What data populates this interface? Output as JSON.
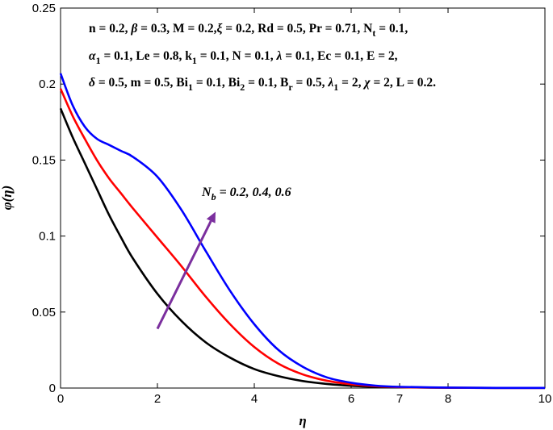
{
  "chart_data": {
    "type": "line",
    "xlabel": "η",
    "ylabel": "φ(η)",
    "xlim": [
      0,
      10
    ],
    "ylim": [
      0,
      0.25
    ],
    "xticks": [
      0,
      2,
      4,
      6,
      7,
      8,
      10
    ],
    "xtick_labels": [
      "0",
      "2",
      "4",
      "6",
      "7",
      "8",
      "10"
    ],
    "yticks": [
      0,
      0.05,
      0.1,
      0.15,
      0.2,
      0.25
    ],
    "ytick_labels": [
      "0",
      "0.05",
      "0.1",
      "0.15",
      "0.2",
      "0.25"
    ],
    "grid": false,
    "series": [
      {
        "color": "#000000",
        "x": [
          0,
          0.25,
          0.5,
          0.75,
          1,
          1.25,
          1.5,
          2,
          2.5,
          3,
          3.5,
          4,
          4.5,
          5,
          5.5,
          6,
          6.5,
          7,
          8,
          9,
          10
        ],
        "y": [
          0.184,
          0.165,
          0.148,
          0.131,
          0.114,
          0.099,
          0.085,
          0.062,
          0.044,
          0.03,
          0.02,
          0.0125,
          0.0078,
          0.0046,
          0.0027,
          0.0015,
          0.0008,
          0.0005,
          0.0002,
          0.0001,
          0.0001
        ]
      },
      {
        "color": "#ff0000",
        "x": [
          0,
          0.25,
          0.5,
          0.75,
          1,
          1.25,
          1.5,
          2,
          2.5,
          3,
          3.5,
          4,
          4.5,
          5,
          5.5,
          6,
          6.5,
          7,
          8,
          9,
          10
        ],
        "y": [
          0.197,
          0.179,
          0.164,
          0.15,
          0.138,
          0.128,
          0.118,
          0.099,
          0.08,
          0.06,
          0.042,
          0.027,
          0.016,
          0.009,
          0.0048,
          0.0025,
          0.0012,
          0.0006,
          0.0002,
          0.0001,
          0.0001
        ]
      },
      {
        "color": "#0000ff",
        "x": [
          0,
          0.25,
          0.5,
          0.75,
          1,
          1.25,
          1.5,
          2,
          2.5,
          3,
          3.5,
          4,
          4.5,
          5,
          5.5,
          6,
          6.5,
          7,
          8,
          9,
          10
        ],
        "y": [
          0.207,
          0.186,
          0.172,
          0.164,
          0.16,
          0.156,
          0.152,
          0.139,
          0.117,
          0.09,
          0.064,
          0.042,
          0.025,
          0.014,
          0.007,
          0.0035,
          0.0016,
          0.0008,
          0.0003,
          0.0001,
          0.0001
        ]
      }
    ],
    "annotation": {
      "line1": [
        {
          "t": "n = 0.2, "
        },
        {
          "t": "β",
          "i": true
        },
        {
          "t": " = 0.3, M = 0.2,"
        },
        {
          "t": "ξ",
          "i": true
        },
        {
          "t": " = 0.2, Rd = 0.5, Pr = 0.71, N"
        },
        {
          "t": "t",
          "sub": true
        },
        {
          "t": " = 0.1,"
        }
      ],
      "line2": [
        {
          "t": "α",
          "i": true
        },
        {
          "t": "1",
          "sub": true
        },
        {
          "t": " = 0.1, Le = 0.8, k"
        },
        {
          "t": "1",
          "sub": true
        },
        {
          "t": " = 0.1, N = 0.1, "
        },
        {
          "t": "λ",
          "i": true
        },
        {
          "t": " = 0.1, Ec = 0.1, E = 2,"
        }
      ],
      "line3": [
        {
          "t": "δ",
          "i": true
        },
        {
          "t": " = 0.5, m = 0.5, Bi"
        },
        {
          "t": "1",
          "sub": true
        },
        {
          "t": " = 0.1, Bi"
        },
        {
          "t": "2",
          "sub": true
        },
        {
          "t": " = 0.1, B"
        },
        {
          "t": "r",
          "sub": true
        },
        {
          "t": " = 0.5, "
        },
        {
          "t": "λ",
          "i": true
        },
        {
          "t": "1",
          "sub": true
        },
        {
          "t": " = 2, "
        },
        {
          "t": "χ",
          "i": true
        },
        {
          "t": " = 2, L = 0.2."
        }
      ]
    },
    "callout": {
      "parts": [
        {
          "t": "N"
        },
        {
          "t": "b",
          "sub": true
        },
        {
          "t": " = 0.2, 0.4, 0.6"
        }
      ],
      "arrow_from": [
        2.0,
        0.039
      ],
      "arrow_to": [
        3.2,
        0.116
      ],
      "arrow_color": "#7b2f9e"
    }
  }
}
